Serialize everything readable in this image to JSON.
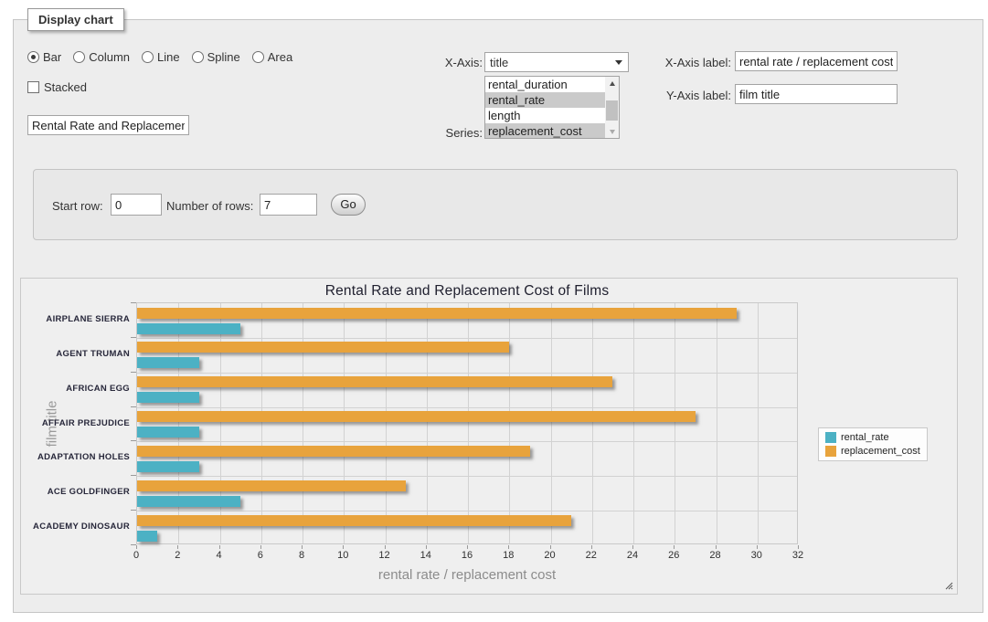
{
  "panel": {
    "legend_title": "Display chart"
  },
  "chart_type_options": [
    {
      "label": "Bar",
      "selected": true
    },
    {
      "label": "Column",
      "selected": false
    },
    {
      "label": "Line",
      "selected": false
    },
    {
      "label": "Spline",
      "selected": false
    },
    {
      "label": "Area",
      "selected": false
    }
  ],
  "stacked": {
    "label": "Stacked",
    "checked": false
  },
  "title_input": {
    "value": "Rental Rate and Replacement Cost of Films"
  },
  "x_axis_select": {
    "label": "X-Axis:",
    "value": "title"
  },
  "series_select": {
    "label": "Series:",
    "options": [
      {
        "label": "rental_duration",
        "selected": false
      },
      {
        "label": "rental_rate",
        "selected": true
      },
      {
        "label": "length",
        "selected": false
      },
      {
        "label": "replacement_cost",
        "selected": true
      }
    ]
  },
  "x_axis_label": {
    "label": "X-Axis label:",
    "value": "rental rate / replacement cost"
  },
  "y_axis_label": {
    "label": "Y-Axis label:",
    "value": "film title"
  },
  "row_controls": {
    "start_row_label": "Start row:",
    "start_row_value": "0",
    "num_rows_label": "Number of rows:",
    "num_rows_value": "7",
    "go_label": "Go"
  },
  "chart_data": {
    "type": "bar",
    "orientation": "horizontal",
    "title": "Rental Rate and Replacement Cost of Films",
    "categories": [
      "AIRPLANE SIERRA",
      "AGENT TRUMAN",
      "AFRICAN EGG",
      "AFFAIR PREJUDICE",
      "ADAPTATION HOLES",
      "ACE GOLDFINGER",
      "ACADEMY DINOSAUR"
    ],
    "series": [
      {
        "name": "rental_rate",
        "color": "#4cb1c4",
        "values": [
          4.99,
          2.99,
          2.99,
          2.99,
          2.99,
          4.99,
          0.99
        ]
      },
      {
        "name": "replacement_cost",
        "color": "#e8a33c",
        "values": [
          28.99,
          17.99,
          22.99,
          26.99,
          18.99,
          12.99,
          20.99
        ]
      }
    ],
    "bar_order_top_first": "replacement_cost",
    "xlabel": "rental rate / replacement cost",
    "ylabel": "film title",
    "xlim": [
      0,
      32
    ],
    "xtick_step": 2,
    "grid": true,
    "legend_position": "right"
  }
}
